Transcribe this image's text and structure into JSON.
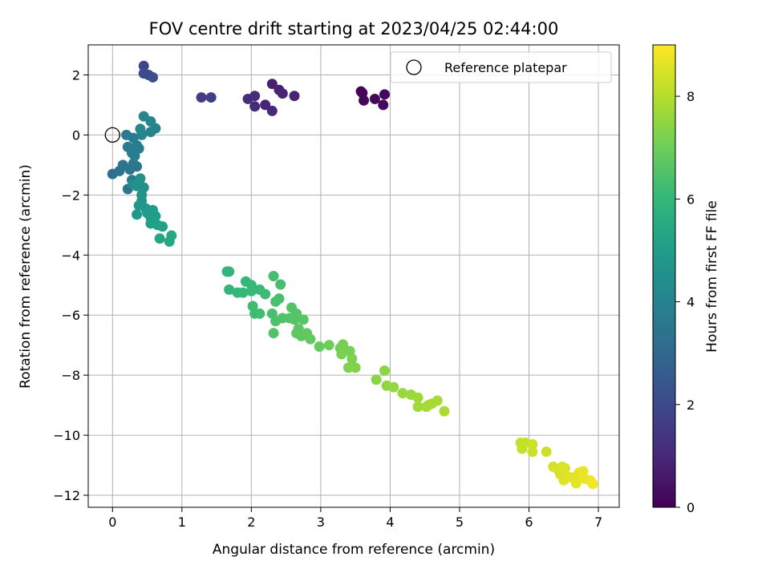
{
  "chart_data": {
    "type": "scatter",
    "title": "FOV centre drift starting at 2023/04/25 02:44:00",
    "xlabel": "Angular distance from reference (arcmin)",
    "ylabel": "Rotation from reference (arcmin)",
    "colorbar_label": "Hours from first FF file",
    "xlim": [
      -0.35,
      7.3
    ],
    "ylim": [
      -12.4,
      3.0
    ],
    "x_ticks": [
      0,
      1,
      2,
      3,
      4,
      5,
      6,
      7
    ],
    "y_ticks": [
      -12,
      -10,
      -8,
      -6,
      -4,
      -2,
      0,
      2
    ],
    "x_tick_labels": [
      "0",
      "1",
      "2",
      "3",
      "4",
      "5",
      "6",
      "7"
    ],
    "y_tick_labels": [
      "−12",
      "−10",
      "−8",
      "−6",
      "−4",
      "−2",
      "0",
      "2"
    ],
    "colorbar_range": [
      0,
      9
    ],
    "colorbar_ticks": [
      0,
      2,
      4,
      6,
      8
    ],
    "colorbar_tick_labels": [
      "0",
      "2",
      "4",
      "6",
      "8"
    ],
    "colormap": "viridis",
    "grid": true,
    "legend": {
      "position": "top-right",
      "entries": [
        {
          "label": "Reference platepar",
          "marker": "open-circle",
          "x": 0,
          "y": 0
        }
      ]
    },
    "points": [
      [
        3.6,
        1.4,
        0.1
      ],
      [
        3.62,
        1.15,
        0.12
      ],
      [
        3.78,
        1.2,
        0.15
      ],
      [
        3.9,
        1.0,
        0.18
      ],
      [
        3.92,
        1.35,
        0.2
      ],
      [
        3.58,
        1.45,
        0.08
      ],
      [
        2.3,
        1.7,
        0.8
      ],
      [
        2.4,
        1.5,
        0.85
      ],
      [
        2.45,
        1.38,
        0.9
      ],
      [
        2.62,
        1.3,
        0.88
      ],
      [
        2.2,
        1.0,
        0.95
      ],
      [
        2.3,
        0.8,
        1.0
      ],
      [
        2.05,
        0.95,
        1.05
      ],
      [
        2.05,
        1.3,
        1.1
      ],
      [
        1.95,
        1.2,
        1.15
      ],
      [
        1.28,
        1.25,
        1.6
      ],
      [
        1.42,
        1.25,
        1.65
      ],
      [
        0.45,
        2.3,
        1.9
      ],
      [
        0.45,
        2.05,
        2.0
      ],
      [
        0.52,
        2.0,
        2.05
      ],
      [
        0.58,
        1.92,
        2.1
      ],
      [
        0,
        -1.3,
        3.2
      ],
      [
        0.1,
        -1.2,
        3.3
      ],
      [
        0.22,
        -1.8,
        3.5
      ],
      [
        0.28,
        -1.5,
        3.6
      ],
      [
        0.15,
        -1.0,
        3.4
      ],
      [
        0.25,
        -1.15,
        3.45
      ],
      [
        0.35,
        -1.05,
        3.5
      ],
      [
        0.3,
        -0.95,
        3.55
      ],
      [
        0.2,
        0.0,
        3.6
      ],
      [
        0.3,
        -0.1,
        3.7
      ],
      [
        0.22,
        -0.4,
        3.7
      ],
      [
        0.35,
        -0.35,
        3.75
      ],
      [
        0.38,
        -0.45,
        3.8
      ],
      [
        0.28,
        -0.6,
        3.8
      ],
      [
        0.32,
        -0.7,
        3.85
      ],
      [
        0.42,
        0.0,
        3.95
      ],
      [
        0.55,
        0.1,
        4.0
      ],
      [
        0.62,
        0.22,
        4.05
      ],
      [
        0.55,
        0.45,
        4.1
      ],
      [
        0.45,
        0.62,
        4.15
      ],
      [
        0.4,
        0.2,
        4.2
      ],
      [
        0.3,
        -1.65,
        4.4
      ],
      [
        0.4,
        -1.45,
        4.5
      ],
      [
        0.35,
        -1.7,
        4.5
      ],
      [
        0.45,
        -1.75,
        4.55
      ],
      [
        0.42,
        -2.0,
        4.6
      ],
      [
        0.42,
        -2.2,
        4.7
      ],
      [
        0.38,
        -2.35,
        4.75
      ],
      [
        0.48,
        -2.45,
        4.8
      ],
      [
        0.35,
        -2.65,
        4.85
      ],
      [
        0.5,
        -2.6,
        4.9
      ],
      [
        0.58,
        -2.5,
        4.95
      ],
      [
        0.55,
        -2.75,
        5.0
      ],
      [
        0.62,
        -2.7,
        5.05
      ],
      [
        0.55,
        -2.95,
        5.1
      ],
      [
        0.65,
        -3.0,
        5.15
      ],
      [
        0.72,
        -3.05,
        5.2
      ],
      [
        0.68,
        -3.45,
        5.3
      ],
      [
        0.82,
        -3.55,
        5.35
      ],
      [
        0.85,
        -3.35,
        5.4
      ],
      [
        1.65,
        -4.55,
        5.9
      ],
      [
        1.68,
        -4.55,
        5.92
      ],
      [
        1.68,
        -5.15,
        5.95
      ],
      [
        1.8,
        -5.25,
        6.0
      ],
      [
        1.88,
        -5.25,
        6.05
      ],
      [
        1.92,
        -4.88,
        6.0
      ],
      [
        2.0,
        -5.0,
        6.05
      ],
      [
        2.0,
        -5.2,
        6.1
      ],
      [
        2.12,
        -5.15,
        6.1
      ],
      [
        2.2,
        -5.3,
        6.15
      ],
      [
        2.02,
        -5.7,
        6.2
      ],
      [
        2.05,
        -5.95,
        6.2
      ],
      [
        2.12,
        -5.95,
        6.25
      ],
      [
        2.32,
        -4.7,
        6.3
      ],
      [
        2.42,
        -4.98,
        6.35
      ],
      [
        2.4,
        -5.45,
        6.35
      ],
      [
        2.35,
        -5.55,
        6.4
      ],
      [
        2.3,
        -5.95,
        6.4
      ],
      [
        2.35,
        -6.2,
        6.45
      ],
      [
        2.32,
        -6.6,
        6.5
      ],
      [
        2.45,
        -6.1,
        6.5
      ],
      [
        2.58,
        -5.75,
        6.55
      ],
      [
        2.55,
        -6.1,
        6.55
      ],
      [
        2.62,
        -6.15,
        6.6
      ],
      [
        2.65,
        -5.95,
        6.6
      ],
      [
        2.75,
        -6.15,
        6.65
      ],
      [
        2.68,
        -6.45,
        6.7
      ],
      [
        2.65,
        -6.6,
        6.72
      ],
      [
        2.72,
        -6.7,
        6.75
      ],
      [
        2.8,
        -6.6,
        6.78
      ],
      [
        2.85,
        -6.8,
        6.8
      ],
      [
        2.98,
        -7.05,
        6.85
      ],
      [
        3.12,
        -7.0,
        7.0
      ],
      [
        3.28,
        -7.1,
        7.05
      ],
      [
        3.32,
        -6.98,
        7.1
      ],
      [
        3.3,
        -7.3,
        7.15
      ],
      [
        3.42,
        -7.2,
        7.15
      ],
      [
        3.45,
        -7.45,
        7.2
      ],
      [
        3.4,
        -7.75,
        7.25
      ],
      [
        3.5,
        -7.75,
        7.3
      ],
      [
        3.8,
        -8.15,
        7.4
      ],
      [
        3.92,
        -7.85,
        7.45
      ],
      [
        3.95,
        -8.35,
        7.5
      ],
      [
        4.05,
        -8.4,
        7.55
      ],
      [
        4.18,
        -8.6,
        7.6
      ],
      [
        4.3,
        -8.65,
        7.65
      ],
      [
        4.4,
        -8.75,
        7.7
      ],
      [
        4.4,
        -9.05,
        7.72
      ],
      [
        4.55,
        -9.0,
        7.75
      ],
      [
        4.52,
        -9.05,
        7.78
      ],
      [
        4.6,
        -8.95,
        7.8
      ],
      [
        4.68,
        -8.85,
        7.82
      ],
      [
        4.78,
        -9.2,
        7.85
      ],
      [
        5.88,
        -10.25,
        8.2
      ],
      [
        5.9,
        -10.45,
        8.22
      ],
      [
        5.95,
        -10.25,
        8.25
      ],
      [
        6.05,
        -10.55,
        8.3
      ],
      [
        6.05,
        -10.3,
        8.32
      ],
      [
        6.25,
        -10.55,
        8.35
      ],
      [
        6.35,
        -11.05,
        8.4
      ],
      [
        6.42,
        -11.15,
        8.45
      ],
      [
        6.48,
        -11.05,
        8.5
      ],
      [
        6.45,
        -11.3,
        8.5
      ],
      [
        6.5,
        -11.5,
        8.55
      ],
      [
        6.52,
        -11.1,
        8.55
      ],
      [
        6.58,
        -11.4,
        8.6
      ],
      [
        6.65,
        -11.4,
        8.62
      ],
      [
        6.68,
        -11.6,
        8.65
      ],
      [
        6.72,
        -11.25,
        8.7
      ],
      [
        6.78,
        -11.2,
        8.72
      ],
      [
        6.8,
        -11.45,
        8.75
      ],
      [
        6.88,
        -11.5,
        8.78
      ],
      [
        6.92,
        -11.62,
        8.85
      ]
    ]
  }
}
